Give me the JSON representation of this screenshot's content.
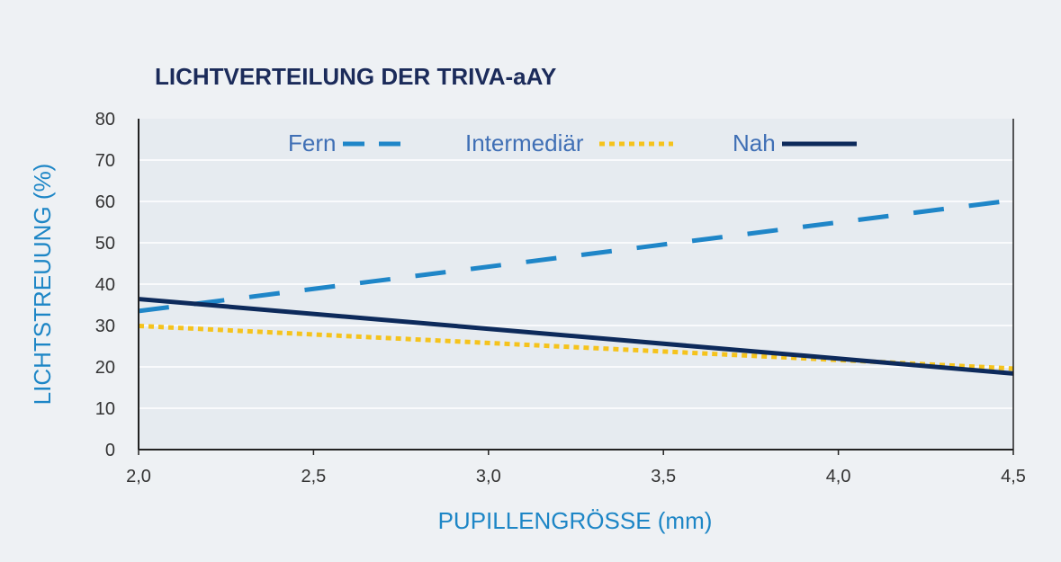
{
  "colors": {
    "background": "#eef1f4",
    "plot_background": "#e6ebf0",
    "grid": "#ffffff",
    "axis": "#222222",
    "title": "#1b2b5a",
    "axis_label": "#1d86c6",
    "tick_label": "#333333",
    "legend_text": "#3f6fb5"
  },
  "chart_data": {
    "type": "line",
    "title": "LICHTVERTEILUNG DER TRIVA-aAY",
    "xlabel": "PUPILLENGRÖSSE (mm)",
    "ylabel": "LICHTSTREUUNG (%)",
    "xlim": [
      2.0,
      4.5
    ],
    "ylim": [
      0,
      80
    ],
    "x_ticks": [
      2.0,
      2.5,
      3.0,
      3.5,
      4.0,
      4.5
    ],
    "x_tick_labels": [
      "2,0",
      "2,5",
      "3,0",
      "3,5",
      "4,0",
      "4,5"
    ],
    "y_ticks": [
      0,
      10,
      20,
      30,
      40,
      50,
      60,
      70,
      80
    ],
    "y_tick_labels": [
      "0",
      "10",
      "20",
      "30",
      "40",
      "50",
      "60",
      "70",
      "80"
    ],
    "grid": true,
    "legend_position": "top",
    "series": [
      {
        "name": "Fern",
        "color": "#1f86c8",
        "style": "dashed",
        "x": [
          2.0,
          4.5
        ],
        "y": [
          33.5,
          60.3
        ]
      },
      {
        "name": "Intermediär",
        "color": "#f5c31c",
        "style": "dotted",
        "x": [
          2.0,
          4.5
        ],
        "y": [
          29.9,
          19.6
        ]
      },
      {
        "name": "Nah",
        "color": "#0d2a5b",
        "style": "solid",
        "x": [
          2.0,
          4.5
        ],
        "y": [
          36.4,
          18.4
        ]
      }
    ]
  }
}
